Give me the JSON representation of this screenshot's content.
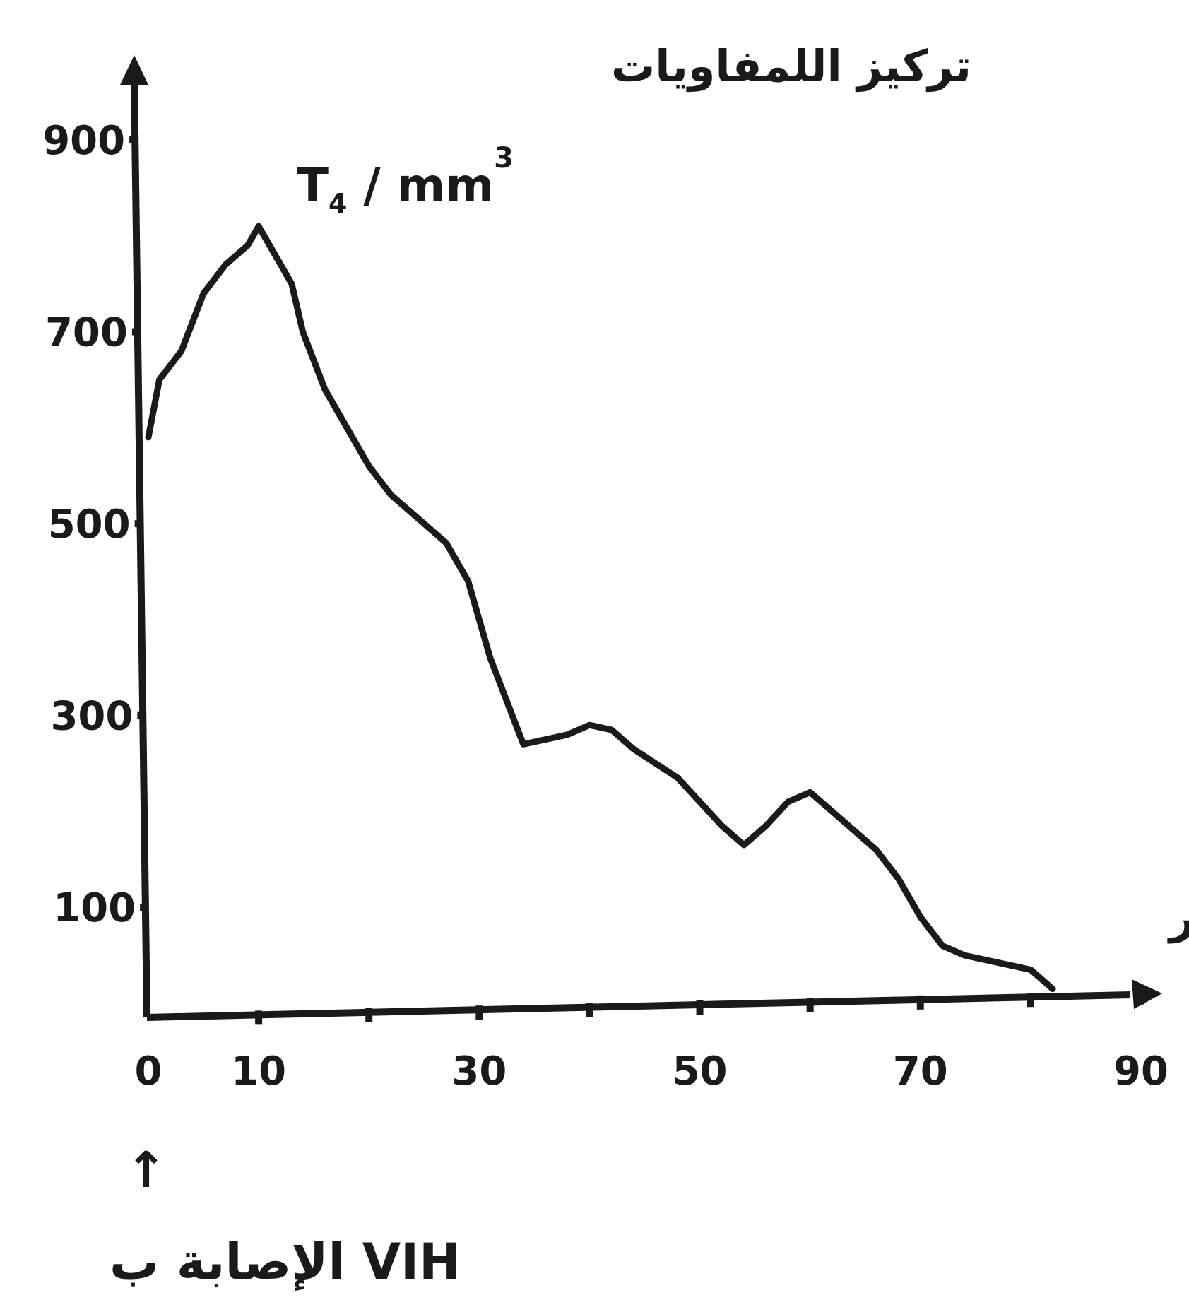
{
  "chart_data": {
    "type": "line",
    "title": "تركيز اللمفاويات",
    "ylabel_unit": "T4 / mm³",
    "ylabel_unit_base": "T",
    "ylabel_unit_sub": "4",
    "ylabel_unit_mid": " / mm",
    "ylabel_unit_sup": "3",
    "xlabel": "شهور",
    "annotation": "الإصابة ب VIH",
    "annotation_arrow": "↑",
    "xlim": [
      0,
      90
    ],
    "ylim": [
      0,
      900
    ],
    "x_ticks": [
      0,
      10,
      30,
      50,
      70,
      90
    ],
    "y_ticks": [
      100,
      300,
      500,
      700,
      900
    ],
    "grid": false,
    "series": [
      {
        "x": [
          0,
          1,
          3,
          5,
          7,
          9,
          10,
          11,
          13,
          14,
          16,
          18,
          20,
          22,
          25,
          27,
          29,
          31,
          34,
          36,
          38,
          40,
          42,
          44,
          46,
          48,
          50,
          52,
          54,
          56,
          58,
          60,
          62,
          64,
          66,
          68,
          70,
          72,
          74,
          76,
          78,
          80,
          82
        ],
        "values": [
          590,
          650,
          680,
          740,
          770,
          790,
          810,
          790,
          750,
          700,
          640,
          600,
          560,
          530,
          500,
          480,
          440,
          360,
          270,
          275,
          280,
          290,
          285,
          265,
          250,
          235,
          210,
          185,
          165,
          185,
          210,
          220,
          200,
          180,
          160,
          130,
          90,
          60,
          50,
          45,
          40,
          35,
          15
        ]
      }
    ]
  }
}
